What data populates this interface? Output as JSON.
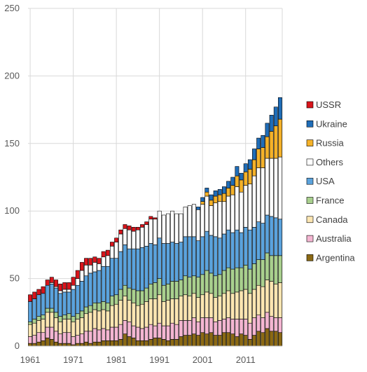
{
  "chart_data": {
    "type": "bar",
    "stacked": true,
    "title": "",
    "xlabel": "",
    "ylabel": "",
    "ylim": [
      0,
      250
    ],
    "yticks": [
      0,
      50,
      100,
      150,
      200,
      250
    ],
    "x": [
      1961,
      1962,
      1963,
      1964,
      1965,
      1966,
      1967,
      1968,
      1969,
      1970,
      1971,
      1972,
      1973,
      1974,
      1975,
      1976,
      1977,
      1978,
      1979,
      1980,
      1981,
      1982,
      1983,
      1984,
      1985,
      1986,
      1987,
      1988,
      1989,
      1990,
      1991,
      1992,
      1993,
      1994,
      1995,
      1996,
      1997,
      1998,
      1999,
      2000,
      2001,
      2002,
      2003,
      2004,
      2005,
      2006,
      2007,
      2008,
      2009,
      2010,
      2011,
      2012,
      2013,
      2014,
      2015,
      2016,
      2017,
      2018,
      2019
    ],
    "xtick_labels": [
      "1961",
      "1971",
      "1981",
      "1991",
      "2001",
      "2011"
    ],
    "grid": true,
    "legend_position": "right",
    "series": [
      {
        "name": "Argentina",
        "color": "#8B6914",
        "values": [
          2,
          2,
          3,
          4,
          6,
          5,
          3,
          2,
          2,
          2,
          1,
          2,
          2,
          3,
          2,
          3,
          3,
          4,
          4,
          4,
          4,
          5,
          9,
          7,
          6,
          4,
          4,
          4,
          5,
          6,
          6,
          5,
          4,
          5,
          5,
          7,
          8,
          8,
          9,
          8,
          10,
          9,
          10,
          8,
          8,
          10,
          10,
          9,
          7,
          9,
          8,
          5,
          8,
          11,
          10,
          13,
          11,
          11,
          10
        ]
      },
      {
        "name": "Australia",
        "color": "#F4B6D2",
        "values": [
          5,
          6,
          7,
          6,
          8,
          9,
          8,
          7,
          8,
          8,
          6,
          6,
          7,
          8,
          9,
          10,
          9,
          9,
          8,
          10,
          10,
          11,
          10,
          11,
          9,
          10,
          9,
          10,
          11,
          9,
          11,
          10,
          11,
          12,
          11,
          12,
          11,
          11,
          12,
          10,
          11,
          12,
          11,
          10,
          11,
          10,
          11,
          11,
          13,
          11,
          12,
          12,
          13,
          12,
          11,
          12,
          11,
          10,
          11
        ]
      },
      {
        "name": "Canada",
        "color": "#FCE6B2",
        "values": [
          9,
          9,
          9,
          10,
          11,
          11,
          10,
          9,
          10,
          10,
          11,
          12,
          12,
          13,
          14,
          14,
          14,
          14,
          14,
          16,
          17,
          18,
          18,
          16,
          17,
          16,
          18,
          19,
          19,
          20,
          21,
          18,
          19,
          18,
          19,
          18,
          19,
          18,
          18,
          18,
          17,
          19,
          18,
          18,
          18,
          19,
          20,
          19,
          20,
          21,
          22,
          22,
          21,
          22,
          23,
          24,
          26,
          25,
          26
        ]
      },
      {
        "name": "France",
        "color": "#A9D08E",
        "values": [
          2,
          3,
          3,
          3,
          3,
          3,
          4,
          4,
          3,
          4,
          4,
          4,
          5,
          5,
          5,
          5,
          6,
          6,
          6,
          7,
          7,
          8,
          8,
          9,
          10,
          11,
          10,
          10,
          11,
          12,
          12,
          12,
          12,
          13,
          13,
          12,
          14,
          14,
          13,
          15,
          15,
          16,
          15,
          16,
          16,
          17,
          17,
          18,
          18,
          17,
          18,
          18,
          19,
          19,
          20,
          20,
          19,
          21,
          20
        ]
      },
      {
        "name": "USA",
        "color": "#5BA3DD",
        "values": [
          15,
          15,
          16,
          16,
          17,
          18,
          18,
          17,
          17,
          16,
          20,
          21,
          22,
          23,
          24,
          23,
          24,
          26,
          27,
          28,
          27,
          28,
          30,
          29,
          30,
          31,
          32,
          31,
          30,
          28,
          30,
          31,
          30,
          29,
          28,
          28,
          29,
          30,
          29,
          27,
          28,
          29,
          28,
          29,
          27,
          27,
          28,
          27,
          28,
          26,
          28,
          29,
          27,
          28,
          27,
          28,
          29,
          28,
          27
        ]
      },
      {
        "name": "Others",
        "color": "#FFFFFF",
        "values": [
          0,
          0,
          0,
          0,
          0,
          1,
          1,
          2,
          2,
          2,
          3,
          5,
          8,
          8,
          6,
          7,
          5,
          7,
          8,
          9,
          12,
          13,
          12,
          14,
          13,
          14,
          15,
          16,
          18,
          19,
          20,
          21,
          22,
          23,
          22,
          21,
          22,
          23,
          24,
          23,
          24,
          26,
          22,
          25,
          27,
          24,
          25,
          28,
          32,
          30,
          31,
          34,
          38,
          40,
          41,
          42,
          43,
          44,
          46
        ]
      },
      {
        "name": "Russia",
        "color": "#F5B229",
        "values": [
          0,
          0,
          0,
          0,
          0,
          0,
          0,
          0,
          0,
          0,
          0,
          0,
          0,
          0,
          0,
          0,
          0,
          0,
          0,
          0,
          0,
          0,
          0,
          0,
          0,
          0,
          0,
          0,
          0,
          0,
          0,
          0,
          0,
          0,
          0,
          0,
          0,
          0,
          0,
          0,
          2,
          3,
          4,
          5,
          5,
          6,
          6,
          7,
          8,
          9,
          10,
          11,
          12,
          14,
          15,
          16,
          20,
          24,
          28
        ]
      },
      {
        "name": "Ukraine",
        "color": "#1F6DB8",
        "values": [
          0,
          0,
          0,
          0,
          0,
          0,
          0,
          0,
          0,
          0,
          0,
          0,
          0,
          0,
          0,
          0,
          0,
          0,
          0,
          0,
          0,
          0,
          0,
          0,
          0,
          0,
          0,
          0,
          0,
          0,
          0,
          0,
          0,
          0,
          0,
          0,
          0,
          0,
          0,
          2,
          3,
          3,
          4,
          4,
          4,
          5,
          5,
          6,
          7,
          5,
          6,
          7,
          8,
          8,
          9,
          10,
          12,
          14,
          16
        ]
      },
      {
        "name": "USSR",
        "color": "#D9141B",
        "values": [
          5,
          5,
          4,
          5,
          4,
          4,
          5,
          5,
          5,
          5,
          6,
          6,
          6,
          5,
          5,
          4,
          4,
          4,
          4,
          3,
          3,
          3,
          3,
          3,
          3,
          2,
          2,
          2,
          2,
          1,
          0,
          0,
          0,
          0,
          0,
          0,
          0,
          0,
          0,
          0,
          0,
          0,
          0,
          0,
          0,
          0,
          0,
          0,
          0,
          0,
          0,
          0,
          0,
          0,
          0,
          0,
          0,
          0,
          0
        ]
      }
    ]
  }
}
